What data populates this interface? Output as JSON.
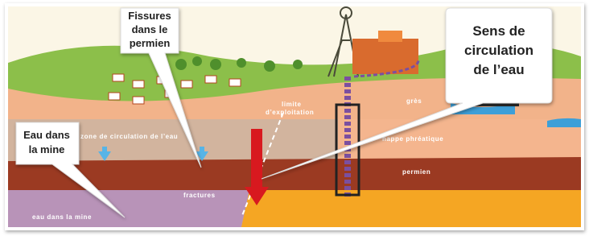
{
  "callouts": [
    {
      "lines": [
        "Fissures",
        "dans le",
        "permien"
      ]
    },
    {
      "lines": [
        "Sens de",
        "circulation",
        "de l’eau"
      ]
    },
    {
      "lines": [
        "Eau dans",
        "la mine"
      ]
    }
  ],
  "labels": {
    "exploitation_limit": [
      "limite",
      "d’exploitation"
    ],
    "circulation_zone": "zone de circulation de l’eau",
    "sandstone": "grès",
    "water_table": "nappe phréatique",
    "permian": "permien",
    "fractures": "fractures",
    "mine_water": "eau dans la mine"
  }
}
